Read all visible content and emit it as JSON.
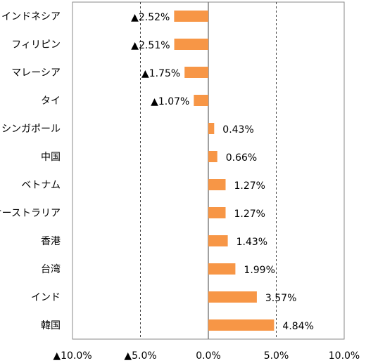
{
  "chart_data": {
    "type": "bar",
    "orientation": "horizontal",
    "categories": [
      "インドネシア",
      "フィリピン",
      "マレーシア",
      "タイ",
      "シンガポール",
      "中国",
      "ベトナム",
      "オーストラリア",
      "香港",
      "台湾",
      "インド",
      "韓国"
    ],
    "values": [
      -2.52,
      -2.51,
      -1.75,
      -1.07,
      0.43,
      0.66,
      1.27,
      1.27,
      1.43,
      1.99,
      3.57,
      4.84
    ],
    "value_labels": [
      "▲2.52%",
      "▲2.51%",
      "▲1.75%",
      "▲1.07%",
      "0.43%",
      "0.66%",
      "1.27%",
      "1.27%",
      "1.43%",
      "1.99%",
      "3.57%",
      "4.84%"
    ],
    "xlim": [
      -10,
      10
    ],
    "xticks": [
      -10,
      -5,
      0,
      5,
      10
    ],
    "xtick_labels": [
      "▲10.0%",
      "▲5.0%",
      "0.0%",
      "5.0%",
      "10.0%"
    ],
    "gridlines": "vertical dashed at ±5.0%",
    "bar_color": "#F79646",
    "title": "",
    "xlabel": "",
    "ylabel": ""
  }
}
